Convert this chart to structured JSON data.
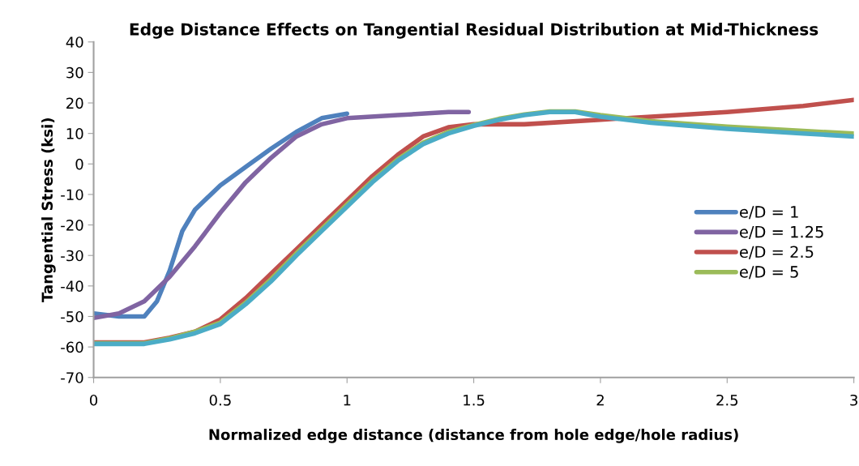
{
  "chart_data": {
    "type": "line",
    "title": "Edge Distance Effects on Tangential Residual Distribution at Mid-Thickness",
    "xlabel": "Normalized edge distance (distance from hole edge/hole radius)",
    "ylabel": "Tangential Stress (ksi)",
    "xlim": [
      0,
      3
    ],
    "xticks": [
      0,
      0.5,
      1,
      1.5,
      2,
      2.5,
      3
    ],
    "ylim": [
      -70,
      40
    ],
    "yticks": [
      -70,
      -60,
      -50,
      -40,
      -30,
      -20,
      -10,
      0,
      10,
      20,
      30,
      40
    ],
    "grid": false,
    "legend": "right",
    "marker": "none",
    "line_style": "solid",
    "series": [
      {
        "name": "e/D = 1",
        "color": "#4f81bd",
        "x": [
          0,
          0.1,
          0.2,
          0.25,
          0.3,
          0.35,
          0.4,
          0.5,
          0.6,
          0.7,
          0.8,
          0.9,
          1.0
        ],
        "values": [
          -49,
          -50,
          -50,
          -45,
          -35,
          -22,
          -15,
          -7,
          -1,
          5,
          10.5,
          15,
          16.5
        ]
      },
      {
        "name": "e/D = 1.25",
        "color": "#8064a2",
        "x": [
          0,
          0.1,
          0.2,
          0.3,
          0.4,
          0.5,
          0.6,
          0.7,
          0.8,
          0.9,
          1.0,
          1.2,
          1.4,
          1.48
        ],
        "values": [
          -50.5,
          -49,
          -45,
          -37,
          -27,
          -16,
          -6,
          2,
          9,
          13,
          15,
          16,
          17,
          17
        ]
      },
      {
        "name": "e/D = 2.5",
        "color": "#c0504d",
        "x": [
          0,
          0.2,
          0.3,
          0.4,
          0.5,
          0.6,
          0.7,
          0.8,
          0.9,
          1.0,
          1.1,
          1.2,
          1.3,
          1.4,
          1.5,
          1.7,
          2.0,
          2.2,
          2.5,
          2.8,
          3.0
        ],
        "values": [
          -58.5,
          -58.5,
          -57,
          -55,
          -51,
          -44,
          -36,
          -28,
          -20,
          -12,
          -4,
          3,
          9,
          12,
          13,
          13,
          14.5,
          15.5,
          17,
          19,
          21
        ]
      },
      {
        "name": "e/D = 5",
        "color": "#9bbb59",
        "x": [
          0,
          0.2,
          0.3,
          0.4,
          0.5,
          0.6,
          0.7,
          0.8,
          0.9,
          1.0,
          1.1,
          1.2,
          1.3,
          1.4,
          1.5,
          1.6,
          1.7,
          1.8,
          1.9,
          2.0,
          2.2,
          2.5,
          2.8,
          3.0
        ],
        "values": [
          -58.8,
          -58.8,
          -57.2,
          -55,
          -52,
          -45.5,
          -37.8,
          -29.3,
          -21.3,
          -13.3,
          -5.5,
          1.5,
          7,
          10.5,
          12.8,
          14.8,
          16.2,
          17.2,
          17.2,
          16,
          14,
          12.2,
          10.8,
          10
        ]
      },
      {
        "color": "#4bacc6",
        "x": [
          0,
          0.2,
          0.3,
          0.4,
          0.5,
          0.6,
          0.7,
          0.8,
          0.9,
          1.0,
          1.1,
          1.2,
          1.3,
          1.4,
          1.5,
          1.6,
          1.7,
          1.8,
          1.9,
          2.0,
          2.2,
          2.5,
          2.8,
          3.0
        ],
        "values": [
          -59,
          -59,
          -57.5,
          -55.5,
          -52.5,
          -46,
          -38.5,
          -30,
          -22,
          -14,
          -6,
          1,
          6.5,
          10,
          12.5,
          14.5,
          16,
          17,
          17,
          15.5,
          13.5,
          11.5,
          10,
          9
        ]
      }
    ]
  }
}
